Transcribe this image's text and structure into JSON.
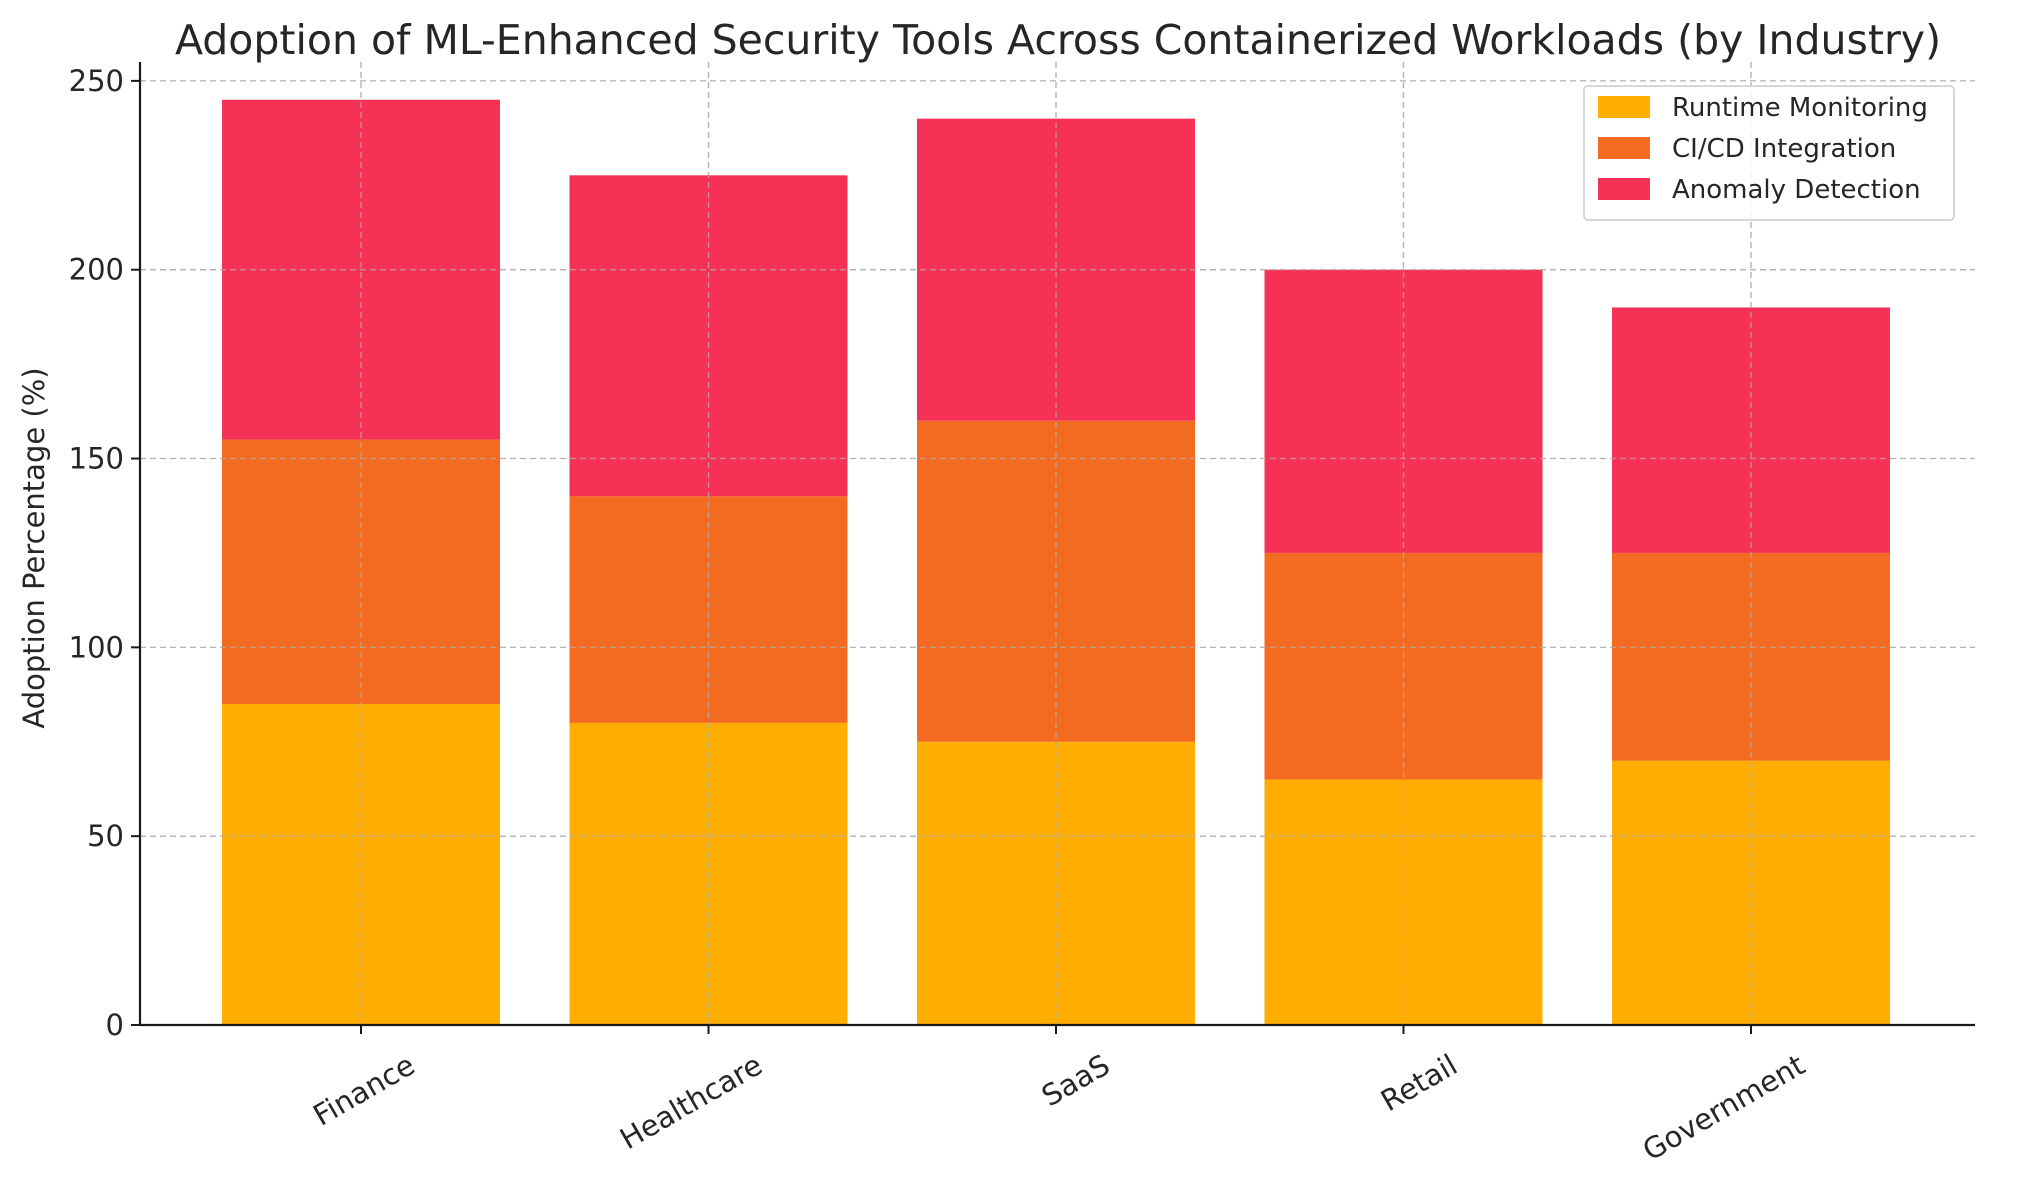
{
  "chart_data": {
    "type": "bar",
    "stacked": true,
    "title": "Adoption of ML-Enhanced Security Tools Across Containerized Workloads (by Industry)",
    "xlabel": "",
    "ylabel": "Adoption Percentage (%)",
    "categories": [
      "Finance",
      "Healthcare",
      "SaaS",
      "Retail",
      "Government"
    ],
    "series": [
      {
        "name": "Runtime Monitoring",
        "values": [
          85,
          80,
          75,
          65,
          70
        ],
        "color": "#ffae00"
      },
      {
        "name": "CI/CD Integration",
        "values": [
          70,
          60,
          85,
          60,
          55
        ],
        "color": "#f26b21"
      },
      {
        "name": "Anomaly Detection",
        "values": [
          90,
          85,
          80,
          75,
          65
        ],
        "color": "#f53255"
      }
    ],
    "ylim": [
      0,
      255
    ],
    "yticks": [
      0,
      50,
      100,
      150,
      200,
      250
    ],
    "grid": true,
    "legend_position": "top-right"
  }
}
